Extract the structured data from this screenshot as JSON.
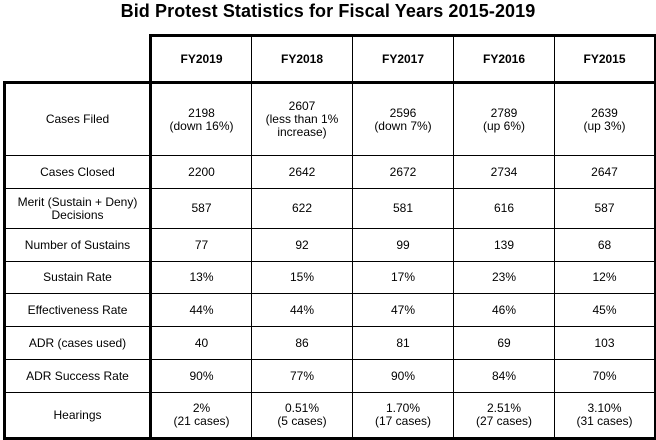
{
  "title": "Bid Protest Statistics for Fiscal Years 2015-2019",
  "columns": [
    "FY2019",
    "FY2018",
    "FY2017",
    "FY2016",
    "FY2015"
  ],
  "rows": [
    {
      "label": "Cases Filed",
      "cells": [
        [
          "2198",
          "(down 16%)"
        ],
        [
          "2607",
          "(less than 1%",
          "increase)"
        ],
        [
          "2596",
          "(down 7%)"
        ],
        [
          "2789",
          "(up 6%)"
        ],
        [
          "2639",
          "(up 3%)"
        ]
      ]
    },
    {
      "label": "Cases Closed",
      "cells": [
        [
          "2200"
        ],
        [
          "2642"
        ],
        [
          "2672"
        ],
        [
          "2734"
        ],
        [
          "2647"
        ]
      ]
    },
    {
      "label_lines": [
        "Merit (Sustain + Deny)",
        "Decisions"
      ],
      "cells": [
        [
          "587"
        ],
        [
          "622"
        ],
        [
          "581"
        ],
        [
          "616"
        ],
        [
          "587"
        ]
      ]
    },
    {
      "label": "Number of Sustains",
      "cells": [
        [
          "77"
        ],
        [
          "92"
        ],
        [
          "99"
        ],
        [
          "139"
        ],
        [
          "68"
        ]
      ]
    },
    {
      "label": "Sustain Rate",
      "cells": [
        [
          "13%"
        ],
        [
          "15%"
        ],
        [
          "17%"
        ],
        [
          "23%"
        ],
        [
          "12%"
        ]
      ]
    },
    {
      "label": "Effectiveness Rate",
      "cells": [
        [
          "44%"
        ],
        [
          "44%"
        ],
        [
          "47%"
        ],
        [
          "46%"
        ],
        [
          "45%"
        ]
      ]
    },
    {
      "label": "ADR (cases used)",
      "cells": [
        [
          "40"
        ],
        [
          "86"
        ],
        [
          "81"
        ],
        [
          "69"
        ],
        [
          "103"
        ]
      ]
    },
    {
      "label": "ADR Success Rate",
      "cells": [
        [
          "90%"
        ],
        [
          "77%"
        ],
        [
          "90%"
        ],
        [
          "84%"
        ],
        [
          "70%"
        ]
      ]
    },
    {
      "label": "Hearings",
      "cells": [
        [
          "2%",
          "(21 cases)"
        ],
        [
          "0.51%",
          "(5 cases)"
        ],
        [
          "1.70%",
          "(17 cases)"
        ],
        [
          "2.51%",
          "(27 cases)"
        ],
        [
          "3.10%",
          "(31 cases)"
        ]
      ]
    }
  ]
}
